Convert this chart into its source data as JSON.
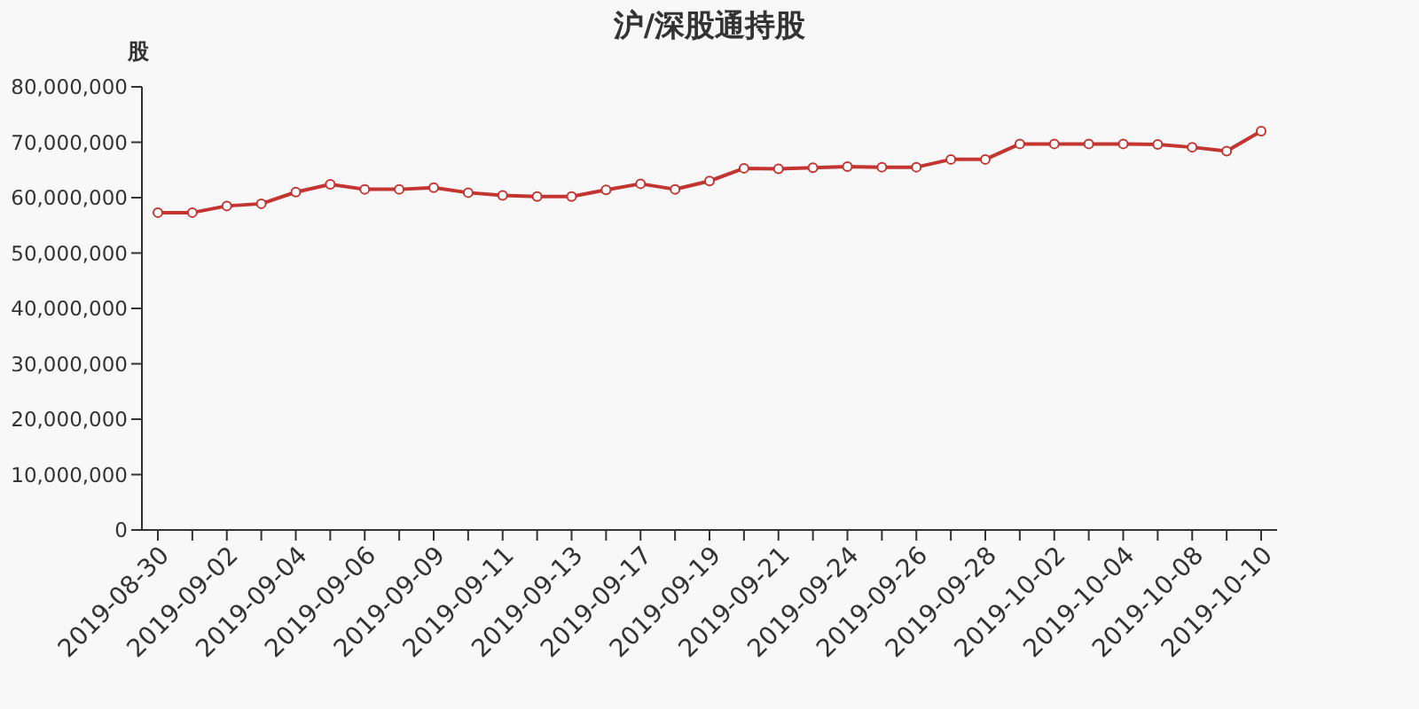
{
  "chart_data": {
    "type": "line",
    "title": "沪/深股通持股",
    "ylabel": "股",
    "categories": [
      "2019-08-30",
      null,
      "2019-09-02",
      null,
      "2019-09-04",
      null,
      "2019-09-06",
      null,
      "2019-09-09",
      null,
      "2019-09-11",
      null,
      "2019-09-13",
      null,
      "2019-09-17",
      null,
      "2019-09-19",
      null,
      "2019-09-21",
      null,
      "2019-09-24",
      null,
      "2019-09-26",
      null,
      "2019-09-28",
      null,
      "2019-10-02",
      null,
      "2019-10-04",
      null,
      "2019-10-08",
      null,
      "2019-10-10"
    ],
    "series": [
      {
        "color": "#c23531",
        "values": [
          57300000,
          57300000,
          58500000,
          58900000,
          61000000,
          62400000,
          61500000,
          61500000,
          61800000,
          60900000,
          60400000,
          60200000,
          60200000,
          61400000,
          62500000,
          61500000,
          63000000,
          65300000,
          65200000,
          65400000,
          65600000,
          65500000,
          65500000,
          66900000,
          66900000,
          69700000,
          69700000,
          69700000,
          69700000,
          69600000,
          69100000,
          68400000,
          72000000
        ]
      }
    ],
    "ylim": [
      0,
      80000000
    ],
    "yticks": [
      0,
      {
        "value": 10000000,
        "label": "10,000,000"
      },
      {
        "value": 20000000,
        "label": "20,000,000"
      },
      {
        "value": 30000000,
        "label": "30,000,000"
      },
      {
        "value": 40000000,
        "label": "40,000,000"
      },
      {
        "value": 50000000,
        "label": "50,000,000"
      },
      {
        "value": 60000000,
        "label": "60,000,000"
      },
      {
        "value": 70000000,
        "label": "70,000,000"
      },
      {
        "value": 80000000,
        "label": "80,000,000"
      }
    ],
    "marker": "circle",
    "line_style": "solid",
    "grid": false
  }
}
